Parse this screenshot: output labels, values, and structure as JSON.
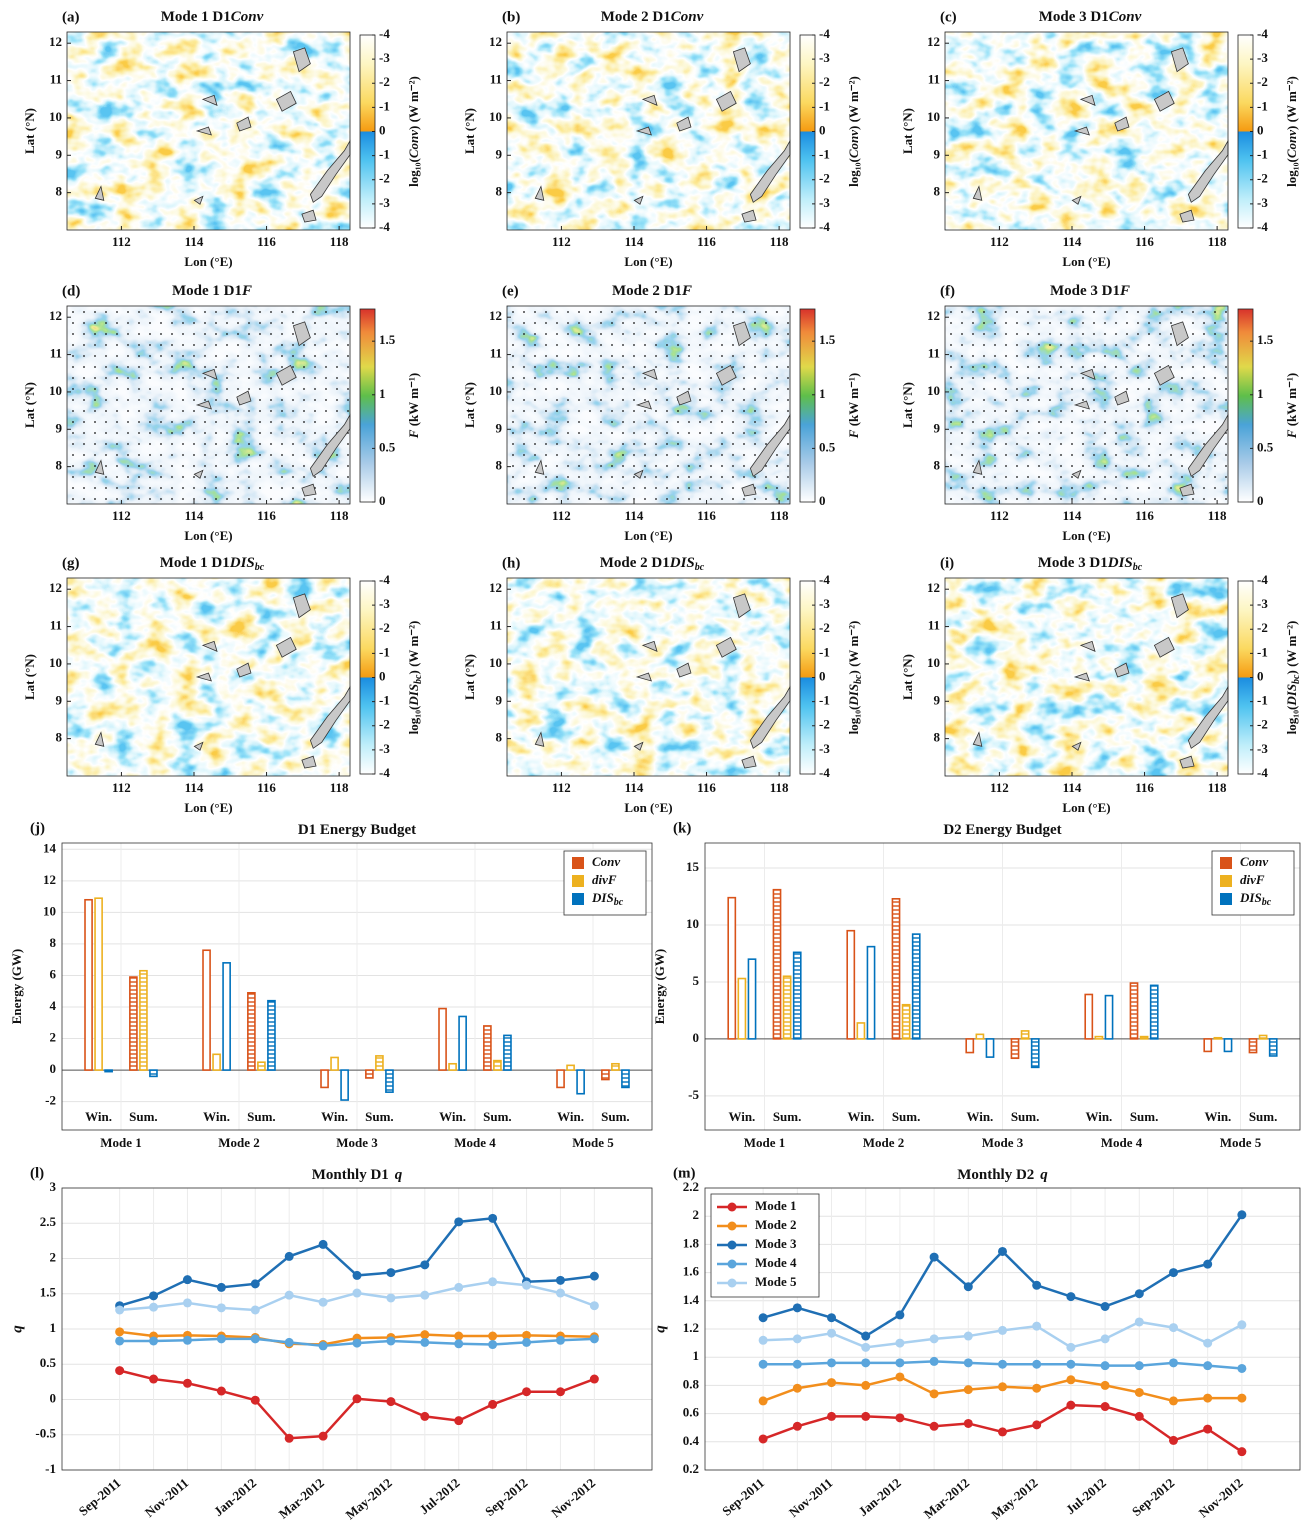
{
  "chart_data": [
    {
      "type": "map",
      "panel": "(a)",
      "title": "Mode  1  D1",
      "variable": "Conv",
      "xlabel": "Lon (°E)",
      "ylabel": "Lat (°N)",
      "colorbar_label_pre": "log₁₀(",
      "colorbar_label_post": ") (W m⁻²)",
      "colormap": "diverging",
      "xlim": [
        110.5,
        118.3
      ],
      "ylim": [
        7,
        12.3
      ],
      "xticks": [
        112,
        114,
        116,
        118
      ],
      "yticks": [
        8,
        9,
        10,
        11,
        12
      ],
      "cticks": [
        -4,
        -3,
        -2,
        -1,
        0,
        -1,
        -2,
        -3,
        -4
      ]
    },
    {
      "type": "map",
      "panel": "(b)",
      "title": "Mode  2  D1",
      "variable": "Conv",
      "xlabel": "Lon (°E)",
      "ylabel": "Lat (°N)",
      "colorbar_label_pre": "log₁₀(",
      "colorbar_label_post": ") (W m⁻²)",
      "colormap": "diverging",
      "xlim": [
        110.5,
        118.3
      ],
      "ylim": [
        7,
        12.3
      ],
      "xticks": [
        112,
        114,
        116,
        118
      ],
      "yticks": [
        8,
        9,
        10,
        11,
        12
      ],
      "cticks": [
        -4,
        -3,
        -2,
        -1,
        0,
        -1,
        -2,
        -3,
        -4
      ]
    },
    {
      "type": "map",
      "panel": "(c)",
      "title": "Mode  3  D1",
      "variable": "Conv",
      "xlabel": "Lon (°E)",
      "ylabel": "Lat (°N)",
      "colorbar_label_pre": "log₁₀(",
      "colorbar_label_post": ") (W m⁻²)",
      "colormap": "diverging",
      "xlim": [
        110.5,
        118.3
      ],
      "ylim": [
        7,
        12.3
      ],
      "xticks": [
        112,
        114,
        116,
        118
      ],
      "yticks": [
        8,
        9,
        10,
        11,
        12
      ],
      "cticks": [
        -4,
        -3,
        -2,
        -1,
        0,
        -1,
        -2,
        -3,
        -4
      ]
    },
    {
      "type": "map",
      "panel": "(d)",
      "title": "Mode  1  D1",
      "variable": "F",
      "xlabel": "Lon (°E)",
      "ylabel": "Lat (°N)",
      "colorbar_label_post": " (kW m⁻¹)",
      "colormap": "sequential",
      "xlim": [
        110.5,
        118.3
      ],
      "ylim": [
        7,
        12.3
      ],
      "xticks": [
        112,
        114,
        116,
        118
      ],
      "yticks": [
        8,
        9,
        10,
        11,
        12
      ],
      "clim": [
        0,
        1.8
      ],
      "cticks": [
        0,
        0.5,
        1,
        1.5
      ]
    },
    {
      "type": "map",
      "panel": "(e)",
      "title": "Mode  2  D1",
      "variable": "F",
      "xlabel": "Lon (°E)",
      "ylabel": "Lat (°N)",
      "colorbar_label_post": " (kW m⁻¹)",
      "colormap": "sequential",
      "xlim": [
        110.5,
        118.3
      ],
      "ylim": [
        7,
        12.3
      ],
      "xticks": [
        112,
        114,
        116,
        118
      ],
      "yticks": [
        8,
        9,
        10,
        11,
        12
      ],
      "clim": [
        0,
        1.8
      ],
      "cticks": [
        0,
        0.5,
        1,
        1.5
      ]
    },
    {
      "type": "map",
      "panel": "(f)",
      "title": "Mode  3  D1",
      "variable": "F",
      "xlabel": "Lon (°E)",
      "ylabel": "Lat (°N)",
      "colorbar_label_post": " (kW m⁻¹)",
      "colormap": "sequential",
      "xlim": [
        110.5,
        118.3
      ],
      "ylim": [
        7,
        12.3
      ],
      "xticks": [
        112,
        114,
        116,
        118
      ],
      "yticks": [
        8,
        9,
        10,
        11,
        12
      ],
      "clim": [
        0,
        1.8
      ],
      "cticks": [
        0,
        0.5,
        1,
        1.5
      ]
    },
    {
      "type": "map",
      "panel": "(g)",
      "title": "Mode  1  D1",
      "variable": "DIS",
      "variable_sub": "bc",
      "xlabel": "Lon (°E)",
      "ylabel": "Lat (°N)",
      "colorbar_label_pre": "log₁₀(",
      "colorbar_label_post": ") (W m⁻²)",
      "colormap": "diverging",
      "xlim": [
        110.5,
        118.3
      ],
      "ylim": [
        7,
        12.3
      ],
      "xticks": [
        112,
        114,
        116,
        118
      ],
      "yticks": [
        8,
        9,
        10,
        11,
        12
      ],
      "cticks": [
        -4,
        -3,
        -2,
        -1,
        0,
        -1,
        -2,
        -3,
        -4
      ]
    },
    {
      "type": "map",
      "panel": "(h)",
      "title": "Mode  2  D1",
      "variable": "DIS",
      "variable_sub": "bc",
      "xlabel": "Lon (°E)",
      "ylabel": "Lat (°N)",
      "colorbar_label_pre": "log₁₀(",
      "colorbar_label_post": ") (W m⁻²)",
      "colormap": "diverging",
      "xlim": [
        110.5,
        118.3
      ],
      "ylim": [
        7,
        12.3
      ],
      "xticks": [
        112,
        114,
        116,
        118
      ],
      "yticks": [
        8,
        9,
        10,
        11,
        12
      ],
      "cticks": [
        -4,
        -3,
        -2,
        -1,
        0,
        -1,
        -2,
        -3,
        -4
      ]
    },
    {
      "type": "map",
      "panel": "(i)",
      "title": "Mode  3  D1",
      "variable": "DIS",
      "variable_sub": "bc",
      "xlabel": "Lon (°E)",
      "ylabel": "Lat (°N)",
      "colorbar_label_pre": "log₁₀(",
      "colorbar_label_post": ") (W m⁻²)",
      "colormap": "diverging",
      "xlim": [
        110.5,
        118.3
      ],
      "ylim": [
        7,
        12.3
      ],
      "xticks": [
        112,
        114,
        116,
        118
      ],
      "yticks": [
        8,
        9,
        10,
        11,
        12
      ],
      "cticks": [
        -4,
        -3,
        -2,
        -1,
        0,
        -1,
        -2,
        -3,
        -4
      ]
    },
    {
      "type": "bar",
      "panel": "(j)",
      "title": "D1 Energy Budget",
      "ylabel": "Energy (GW)",
      "categories": [
        "Mode 1",
        "Mode 2",
        "Mode 3",
        "Mode 4",
        "Mode 5"
      ],
      "groups": [
        "Win.",
        "Sum."
      ],
      "ylim": [
        -3.8,
        14.4
      ],
      "yticks": [
        -2,
        0,
        2,
        4,
        6,
        8,
        10,
        12,
        14
      ],
      "grid": true,
      "legend": "upper right",
      "series": [
        {
          "name": "Conv",
          "color": "#d95319",
          "values": [
            [
              10.8,
              5.9
            ],
            [
              7.6,
              4.9
            ],
            [
              -1.1,
              -0.5
            ],
            [
              3.9,
              2.8
            ],
            [
              -1.1,
              -0.6
            ]
          ]
        },
        {
          "name": "divF",
          "color": "#edb120",
          "values": [
            [
              10.9,
              6.3
            ],
            [
              1.0,
              0.5
            ],
            [
              0.8,
              0.9
            ],
            [
              0.4,
              0.6
            ],
            [
              0.3,
              0.4
            ]
          ]
        },
        {
          "name": "DIS",
          "name_sub": "bc",
          "color": "#0072bd",
          "values": [
            [
              -0.1,
              -0.4
            ],
            [
              6.8,
              4.4
            ],
            [
              -1.9,
              -1.4
            ],
            [
              3.4,
              2.2
            ],
            [
              -1.5,
              -1.1
            ]
          ]
        }
      ]
    },
    {
      "type": "bar",
      "panel": "(k)",
      "title": "D2 Energy Budget",
      "ylabel": "Energy (GW)",
      "categories": [
        "Mode 1",
        "Mode 2",
        "Mode 3",
        "Mode 4",
        "Mode 5"
      ],
      "groups": [
        "Win.",
        "Sum."
      ],
      "ylim": [
        -8,
        17.2
      ],
      "yticks": [
        -5,
        0,
        5,
        10,
        15
      ],
      "grid": true,
      "legend": "upper right",
      "series": [
        {
          "name": "Conv",
          "color": "#d95319",
          "values": [
            [
              12.4,
              13.1
            ],
            [
              9.5,
              12.3
            ],
            [
              -1.2,
              -1.7
            ],
            [
              3.9,
              4.9
            ],
            [
              -1.1,
              -1.2
            ]
          ]
        },
        {
          "name": "divF",
          "color": "#edb120",
          "values": [
            [
              5.3,
              5.5
            ],
            [
              1.4,
              3.0
            ],
            [
              0.4,
              0.7
            ],
            [
              0.2,
              0.2
            ],
            [
              0.1,
              0.3
            ]
          ]
        },
        {
          "name": "DIS",
          "name_sub": "bc",
          "color": "#0072bd",
          "values": [
            [
              7.0,
              7.6
            ],
            [
              8.1,
              9.2
            ],
            [
              -1.6,
              -2.5
            ],
            [
              3.8,
              4.7
            ],
            [
              -1.1,
              -1.5
            ]
          ]
        }
      ]
    },
    {
      "type": "line",
      "panel": "(l)",
      "title": "Monthly  D1",
      "title_var": "q",
      "ylabel": "q",
      "categories": [
        "Sep-2011",
        null,
        "Nov-2011",
        null,
        "Jan-2012",
        null,
        "Mar-2012",
        null,
        "May-2012",
        null,
        "Jul-2012",
        null,
        "Sep-2012",
        null,
        "Nov-2012"
      ],
      "ylim": [
        -1,
        3
      ],
      "yticks": [
        -1,
        -0.5,
        0,
        0.5,
        1,
        1.5,
        2,
        2.5,
        3
      ],
      "grid": true,
      "series": [
        {
          "name": "Mode 1",
          "color": "#d62728",
          "values": [
            0.41,
            0.29,
            0.23,
            0.12,
            -0.01,
            -0.55,
            -0.52,
            0.01,
            -0.03,
            -0.24,
            -0.3,
            -0.07,
            0.11,
            0.11,
            0.29
          ]
        },
        {
          "name": "Mode 2",
          "color": "#f28e1c",
          "values": [
            0.96,
            0.9,
            0.91,
            0.9,
            0.88,
            0.79,
            0.78,
            0.87,
            0.88,
            0.92,
            0.9,
            0.9,
            0.91,
            0.9,
            0.89
          ]
        },
        {
          "name": "Mode 3",
          "color": "#1f6fb4",
          "values": [
            1.33,
            1.47,
            1.7,
            1.59,
            1.64,
            2.03,
            2.2,
            1.76,
            1.8,
            1.91,
            2.52,
            2.57,
            1.67,
            1.69,
            1.75
          ]
        },
        {
          "name": "Mode 4",
          "color": "#5aa5dc",
          "values": [
            0.83,
            0.83,
            0.84,
            0.86,
            0.86,
            0.81,
            0.76,
            0.8,
            0.83,
            0.81,
            0.79,
            0.78,
            0.81,
            0.84,
            0.86
          ]
        },
        {
          "name": "Mode 5",
          "color": "#a9d0f0",
          "values": [
            1.27,
            1.31,
            1.37,
            1.3,
            1.27,
            1.48,
            1.38,
            1.51,
            1.44,
            1.48,
            1.59,
            1.67,
            1.62,
            1.51,
            1.33
          ]
        }
      ]
    },
    {
      "type": "line",
      "panel": "(m)",
      "title": "Monthly  D2",
      "title_var": "q",
      "ylabel": "q",
      "categories": [
        "Sep-2011",
        null,
        "Nov-2011",
        null,
        "Jan-2012",
        null,
        "Mar-2012",
        null,
        "May-2012",
        null,
        "Jul-2012",
        null,
        "Sep-2012",
        null,
        "Nov-2012"
      ],
      "ylim": [
        0.2,
        2.2
      ],
      "yticks": [
        0.2,
        0.4,
        0.6,
        0.8,
        1,
        1.2,
        1.4,
        1.6,
        1.8,
        2,
        2.2
      ],
      "grid": true,
      "legend": "upper left",
      "series": [
        {
          "name": "Mode 1",
          "color": "#d62728",
          "values": [
            0.42,
            0.51,
            0.58,
            0.58,
            0.57,
            0.51,
            0.53,
            0.47,
            0.52,
            0.66,
            0.65,
            0.58,
            0.41,
            0.49,
            0.33
          ]
        },
        {
          "name": "Mode 2",
          "color": "#f28e1c",
          "values": [
            0.69,
            0.78,
            0.82,
            0.8,
            0.86,
            0.74,
            0.77,
            0.79,
            0.78,
            0.84,
            0.8,
            0.75,
            0.69,
            0.71,
            0.71
          ]
        },
        {
          "name": "Mode 3",
          "color": "#1f6fb4",
          "values": [
            1.28,
            1.35,
            1.28,
            1.15,
            1.3,
            1.71,
            1.5,
            1.75,
            1.51,
            1.43,
            1.36,
            1.45,
            1.6,
            1.66,
            2.01
          ]
        },
        {
          "name": "Mode 4",
          "color": "#5aa5dc",
          "values": [
            0.95,
            0.95,
            0.96,
            0.96,
            0.96,
            0.97,
            0.96,
            0.95,
            0.95,
            0.95,
            0.94,
            0.94,
            0.96,
            0.94,
            0.92
          ]
        },
        {
          "name": "Mode 5",
          "color": "#a9d0f0",
          "values": [
            1.12,
            1.13,
            1.17,
            1.07,
            1.1,
            1.13,
            1.15,
            1.19,
            1.22,
            1.07,
            1.13,
            1.25,
            1.21,
            1.1,
            1.23
          ]
        }
      ]
    }
  ]
}
